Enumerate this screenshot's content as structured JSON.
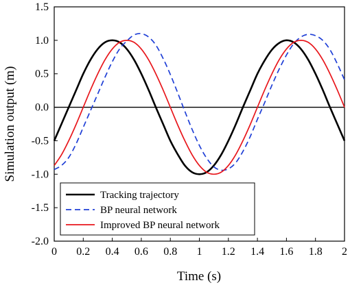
{
  "chart_data": {
    "type": "line",
    "xlabel": "Time (s)",
    "ylabel": "Simulation output (m)",
    "xlim": [
      0,
      2
    ],
    "ylim": [
      -2.0,
      1.5
    ],
    "x_ticks": [
      "0",
      "0.2",
      "0.4",
      "0.6",
      "0.8",
      "1",
      "1.2",
      "1.4",
      "1.6",
      "1.8",
      "2"
    ],
    "y_ticks": [
      "-2.0",
      "-1.5",
      "-1.0",
      "-0.5",
      "0.0",
      "0.5",
      "1.0",
      "1.5"
    ],
    "x_tick_values": [
      0,
      0.2,
      0.4,
      0.6,
      0.8,
      1.0,
      1.2,
      1.4,
      1.6,
      1.8,
      2.0
    ],
    "y_tick_values": [
      -2.0,
      -1.5,
      -1.0,
      -0.5,
      0.0,
      0.5,
      1.0,
      1.5
    ],
    "grid": false,
    "zero_line": true,
    "legend_position": "bottom-left",
    "x": [
      0,
      0.05,
      0.1,
      0.15,
      0.2,
      0.25,
      0.3,
      0.35,
      0.4,
      0.45,
      0.5,
      0.55,
      0.6,
      0.65,
      0.7,
      0.75,
      0.8,
      0.85,
      0.9,
      0.95,
      1.0,
      1.05,
      1.1,
      1.15,
      1.2,
      1.25,
      1.3,
      1.35,
      1.4,
      1.45,
      1.5,
      1.55,
      1.6,
      1.65,
      1.7,
      1.75,
      1.8,
      1.85,
      1.9,
      1.95,
      2.0
    ],
    "series": [
      {
        "name": "Tracking trajectory",
        "color": "#000000",
        "dash": "solid",
        "values": [
          -0.5,
          -0.25,
          0.0,
          0.25,
          0.5,
          0.71,
          0.87,
          0.97,
          1.0,
          0.97,
          0.87,
          0.71,
          0.5,
          0.26,
          0.0,
          -0.25,
          -0.5,
          -0.7,
          -0.87,
          -0.97,
          -1.0,
          -0.97,
          -0.87,
          -0.71,
          -0.5,
          -0.26,
          0.0,
          0.25,
          0.5,
          0.7,
          0.86,
          0.96,
          1.0,
          0.97,
          0.87,
          0.71,
          0.5,
          0.26,
          0.0,
          -0.25,
          -0.5
        ]
      },
      {
        "name": "BP neural network",
        "color": "#1f3fd6",
        "dash": "dashed",
        "values": [
          -0.93,
          -0.87,
          -0.75,
          -0.55,
          -0.3,
          -0.05,
          0.2,
          0.45,
          0.68,
          0.87,
          0.99,
          1.08,
          1.1,
          1.05,
          0.93,
          0.73,
          0.49,
          0.22,
          -0.06,
          -0.33,
          -0.57,
          -0.76,
          -0.89,
          -0.94,
          -0.92,
          -0.83,
          -0.66,
          -0.44,
          -0.18,
          0.07,
          0.33,
          0.57,
          0.78,
          0.95,
          1.05,
          1.09,
          1.07,
          1.0,
          0.86,
          0.65,
          0.41
        ]
      },
      {
        "name": "Improved BP neural network",
        "color": "#e8161b",
        "dash": "solid",
        "values": [
          -0.87,
          -0.71,
          -0.5,
          -0.26,
          0.0,
          0.26,
          0.5,
          0.71,
          0.87,
          0.97,
          1.0,
          0.97,
          0.87,
          0.71,
          0.5,
          0.26,
          0.0,
          -0.26,
          -0.5,
          -0.71,
          -0.87,
          -0.97,
          -1.0,
          -0.97,
          -0.87,
          -0.71,
          -0.5,
          -0.26,
          0.0,
          0.26,
          0.5,
          0.71,
          0.87,
          0.97,
          1.0,
          0.97,
          0.87,
          0.71,
          0.5,
          0.26,
          0.0
        ]
      }
    ]
  }
}
